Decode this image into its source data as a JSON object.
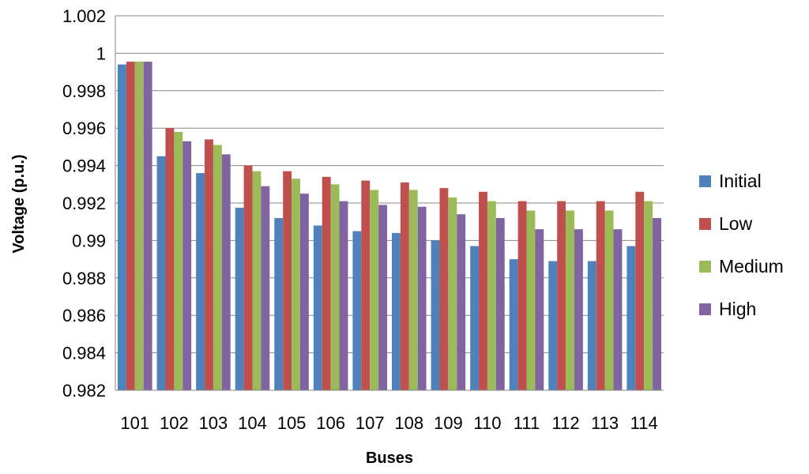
{
  "chart_data": {
    "type": "bar",
    "title": "",
    "xlabel": "Buses",
    "ylabel": "Voltage (p.u.)",
    "ylim": [
      0.982,
      1.002
    ],
    "ytick_step": 0.002,
    "grid": "horizontal",
    "legend_position": "right",
    "categories": [
      "101",
      "102",
      "103",
      "104",
      "105",
      "106",
      "107",
      "108",
      "109",
      "110",
      "111",
      "112",
      "113",
      "114"
    ],
    "series": [
      {
        "name": "Initial",
        "color": "#4f81bd",
        "values": [
          0.9994,
          0.9945,
          0.9936,
          0.99175,
          0.9912,
          0.9908,
          0.9905,
          0.9904,
          0.99,
          0.9897,
          0.989,
          0.9889,
          0.9889,
          0.9897
        ]
      },
      {
        "name": "Low",
        "color": "#c0504d",
        "values": [
          0.99955,
          0.996,
          0.9954,
          0.994,
          0.9937,
          0.9934,
          0.9932,
          0.9931,
          0.9928,
          0.9926,
          0.9921,
          0.9921,
          0.9921,
          0.9926
        ]
      },
      {
        "name": "Medium",
        "color": "#9bbb59",
        "values": [
          0.99955,
          0.9958,
          0.9951,
          0.9937,
          0.9933,
          0.993,
          0.9927,
          0.9927,
          0.9923,
          0.9921,
          0.9916,
          0.9916,
          0.9916,
          0.9921
        ]
      },
      {
        "name": "High",
        "color": "#8064a2",
        "values": [
          0.99955,
          0.9953,
          0.9946,
          0.9929,
          0.9925,
          0.9921,
          0.9919,
          0.9918,
          0.9914,
          0.9912,
          0.9906,
          0.9906,
          0.9906,
          0.9912
        ]
      }
    ],
    "ytick_labels": [
      "0.982",
      "0.984",
      "0.986",
      "0.988",
      "0.99",
      "0.992",
      "0.994",
      "0.996",
      "0.998",
      "1",
      "1.002"
    ]
  }
}
